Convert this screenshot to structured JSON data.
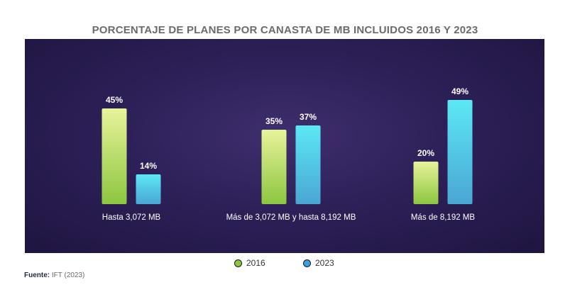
{
  "chart_data": {
    "type": "bar",
    "title": "PORCENTAJE DE PLANES POR CANASTA DE MB INCLUIDOS 2016 Y 2023",
    "categories": [
      "Hasta 3,072 MB",
      "Más de 3,072 MB y hasta 8,192 MB",
      "Más de 8,192 MB"
    ],
    "series": [
      {
        "name": "2016",
        "values": [
          45,
          35,
          20
        ],
        "labels": [
          "45%",
          "35%",
          "20%"
        ],
        "color_top": "#e8f39a",
        "color_bottom": "#8cc63f"
      },
      {
        "name": "2023",
        "values": [
          14,
          37,
          49
        ],
        "labels": [
          "14%",
          "37%",
          "49%"
        ],
        "color_top": "#5ce8f5",
        "color_bottom": "#4aa6d4"
      }
    ],
    "ylim": [
      0,
      50
    ],
    "xlabel": "",
    "ylabel": "",
    "legend": "bottom-center"
  },
  "source": {
    "label": "Fuente:",
    "text": "IFT (2023)"
  },
  "colors": {
    "panel": "#2d2058",
    "legend_2016": "#8cc63f",
    "legend_2023": "#3d9fe0"
  }
}
